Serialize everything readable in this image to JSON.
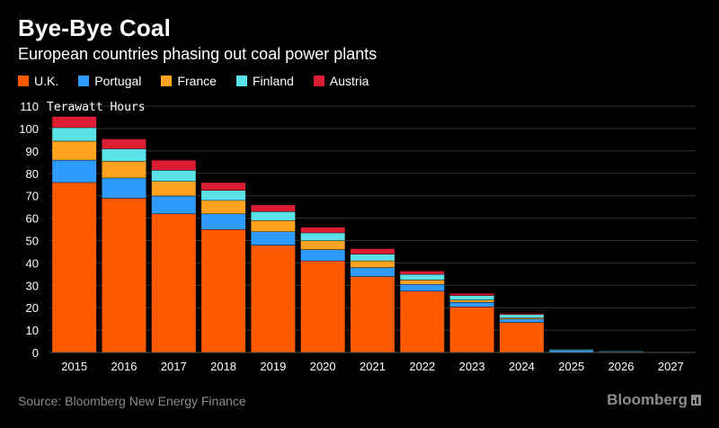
{
  "header": {
    "title": "Bye-Bye Coal",
    "subtitle": "European countries phasing out coal power plants"
  },
  "footer": {
    "source": "Source: Bloomberg New Energy Finance",
    "brand": "Bloomberg"
  },
  "chart_data": {
    "type": "bar",
    "stacked": true,
    "title": "Bye-Bye Coal",
    "subtitle": "European countries phasing out coal power plants",
    "ylabel": "Terawatt Hours",
    "xlabel": "",
    "ylim": [
      0,
      110
    ],
    "yticks": [
      0,
      10,
      20,
      30,
      40,
      50,
      60,
      70,
      80,
      90,
      100,
      110
    ],
    "grid": true,
    "legend_position": "top-left",
    "categories": [
      "2015",
      "2016",
      "2017",
      "2018",
      "2019",
      "2020",
      "2021",
      "2022",
      "2023",
      "2024",
      "2025",
      "2026",
      "2027"
    ],
    "series": [
      {
        "name": "U.K.",
        "color": "#ff5a00",
        "values": [
          76,
          69,
          62,
          55,
          48,
          41,
          34,
          27.5,
          20.5,
          13.5,
          0,
          0,
          0
        ]
      },
      {
        "name": "Portugal",
        "color": "#2f9bff",
        "values": [
          10,
          9,
          8,
          7,
          6,
          5,
          4,
          3,
          2,
          1.5,
          1,
          0.5,
          0
        ]
      },
      {
        "name": "France",
        "color": "#ffa321",
        "values": [
          8.5,
          7.5,
          6.5,
          6,
          5,
          4,
          3,
          2,
          1,
          0.5,
          0,
          0,
          0
        ]
      },
      {
        "name": "Finland",
        "color": "#5ce1e6",
        "values": [
          6,
          5.5,
          5,
          4.5,
          4,
          3.5,
          3,
          2.5,
          2,
          1.5,
          0.5,
          0.3,
          0
        ]
      },
      {
        "name": "Austria",
        "color": "#dc1e35",
        "values": [
          5,
          4.5,
          4.5,
          3.5,
          3,
          2.5,
          2.5,
          1.5,
          1,
          0.5,
          0,
          0,
          0
        ]
      }
    ]
  }
}
